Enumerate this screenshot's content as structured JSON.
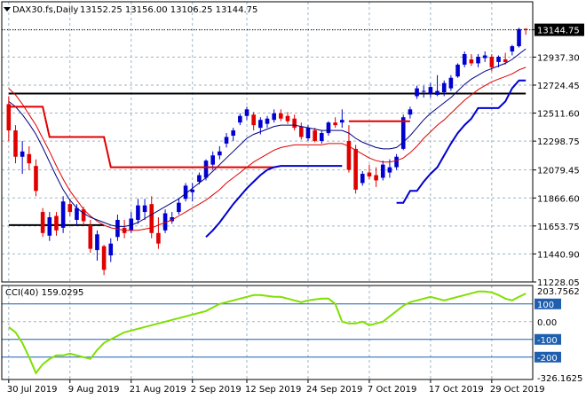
{
  "header": {
    "symbol_timeframe": "DAX30.fs,Daily",
    "ohlc": "13152.25 13156.00 13106.25 13144.75",
    "indicator_label": "CCI(40) 159.0295"
  },
  "colors": {
    "bull_candle": "#0000d0",
    "bear_candle": "#e00000",
    "ma_fast": "#000080",
    "ma_slow": "#e00000",
    "stop_bear": "#e00000",
    "stop_bull": "#0000d0",
    "cci_line": "#7fe000",
    "level_line": "#000000",
    "cci_level": "#1f5faf",
    "grid": "#9fb6c6"
  },
  "price_axis": {
    "ticks": [
      "13144.75",
      "12937.30",
      "12724.45",
      "12511.60",
      "12298.75",
      "12079.45",
      "11866.60",
      "11653.75",
      "11440.90",
      "11228.05"
    ],
    "current": "13144.75"
  },
  "cci_axis": {
    "ticks": [
      "203.7562",
      "100",
      "0.00",
      "-100",
      "-200",
      "-326.1625"
    ],
    "highlighted": [
      "100",
      "-100",
      "-200"
    ]
  },
  "time_axis": {
    "labels": [
      "30 Jul 2019",
      "9 Aug 2019",
      "21 Aug 2019",
      "2 Sep 2019",
      "12 Sep 2019",
      "24 Sep 2019",
      "7 Oct 2019",
      "17 Oct 2019",
      "29 Oct 2019"
    ]
  },
  "chart_data": {
    "type": "candlestick",
    "price_range": [
      11228.05,
      13250
    ],
    "candles": [
      [
        12580,
        12640,
        12300,
        12380
      ],
      [
        12380,
        12420,
        12130,
        12180
      ],
      [
        12180,
        12300,
        12050,
        12220
      ],
      [
        12200,
        12260,
        12080,
        12130
      ],
      [
        12110,
        12160,
        11880,
        11920
      ],
      [
        11760,
        11790,
        11570,
        11600
      ],
      [
        11580,
        11760,
        11540,
        11720
      ],
      [
        11730,
        11760,
        11580,
        11620
      ],
      [
        11640,
        11880,
        11600,
        11840
      ],
      [
        11820,
        11860,
        11730,
        11760
      ],
      [
        11700,
        11820,
        11660,
        11790
      ],
      [
        11780,
        11800,
        11660,
        11690
      ],
      [
        11660,
        11700,
        11450,
        11480
      ],
      [
        11470,
        11620,
        11390,
        11590
      ],
      [
        11500,
        11510,
        11280,
        11320
      ],
      [
        11430,
        11560,
        11380,
        11520
      ],
      [
        11570,
        11740,
        11540,
        11700
      ],
      [
        11640,
        11700,
        11560,
        11600
      ],
      [
        11620,
        11760,
        11600,
        11710
      ],
      [
        11700,
        11860,
        11670,
        11810
      ],
      [
        11760,
        11860,
        11700,
        11810
      ],
      [
        11820,
        11880,
        11560,
        11600
      ],
      [
        11600,
        11720,
        11480,
        11520
      ],
      [
        11620,
        11780,
        11600,
        11750
      ],
      [
        11690,
        11760,
        11670,
        11720
      ],
      [
        11760,
        11860,
        11740,
        11830
      ],
      [
        11860,
        11980,
        11840,
        11960
      ],
      [
        11910,
        11980,
        11840,
        11930
      ],
      [
        11990,
        12060,
        11970,
        12040
      ],
      [
        12020,
        12160,
        12000,
        12150
      ],
      [
        12120,
        12220,
        12080,
        12190
      ],
      [
        12190,
        12260,
        12160,
        12220
      ],
      [
        12280,
        12360,
        12250,
        12330
      ],
      [
        12340,
        12400,
        12300,
        12380
      ],
      [
        12440,
        12510,
        12420,
        12490
      ],
      [
        12490,
        12560,
        12460,
        12540
      ],
      [
        12500,
        12520,
        12380,
        12420
      ],
      [
        12400,
        12480,
        12350,
        12460
      ],
      [
        12430,
        12490,
        12400,
        12470
      ],
      [
        12460,
        12540,
        12440,
        12510
      ],
      [
        12510,
        12540,
        12450,
        12470
      ],
      [
        12490,
        12520,
        12430,
        12450
      ],
      [
        12470,
        12500,
        12380,
        12400
      ],
      [
        12410,
        12440,
        12310,
        12330
      ],
      [
        12320,
        12420,
        12300,
        12400
      ],
      [
        12380,
        12400,
        12290,
        12300
      ],
      [
        12300,
        12380,
        12280,
        12360
      ],
      [
        12360,
        12450,
        12340,
        12440
      ],
      [
        12440,
        12480,
        12400,
        12420
      ],
      [
        12440,
        12540,
        12400,
        12460
      ],
      [
        12300,
        12420,
        12060,
        12080
      ],
      [
        12240,
        12270,
        11900,
        11930
      ],
      [
        11980,
        12070,
        11960,
        12050
      ],
      [
        12060,
        12120,
        12010,
        12030
      ],
      [
        12040,
        12100,
        11950,
        12000
      ],
      [
        12020,
        12150,
        12000,
        12120
      ],
      [
        12060,
        12160,
        12020,
        12100
      ],
      [
        12100,
        12200,
        12080,
        12180
      ],
      [
        12240,
        12500,
        12230,
        12480
      ],
      [
        12500,
        12560,
        12470,
        12540
      ],
      [
        12640,
        12720,
        12620,
        12700
      ],
      [
        12680,
        12720,
        12630,
        12680
      ],
      [
        12660,
        12740,
        12630,
        12710
      ],
      [
        12650,
        12800,
        12640,
        12680
      ],
      [
        12670,
        12760,
        12640,
        12740
      ],
      [
        12700,
        12800,
        12680,
        12780
      ],
      [
        12790,
        12890,
        12780,
        12880
      ],
      [
        12880,
        12980,
        12860,
        12960
      ],
      [
        12920,
        12960,
        12870,
        12890
      ],
      [
        12890,
        12960,
        12860,
        12940
      ],
      [
        12930,
        12980,
        12900,
        12950
      ],
      [
        12940,
        12960,
        12830,
        12860
      ],
      [
        12900,
        12950,
        12860,
        12940
      ],
      [
        12920,
        12970,
        12880,
        12900
      ],
      [
        12980,
        13030,
        12950,
        13020
      ],
      [
        13020,
        13160,
        13010,
        13150
      ],
      [
        13152.25,
        13156,
        13106.25,
        13144.75
      ]
    ],
    "ma_fast": [
      12600,
      12560,
      12500,
      12430,
      12350,
      12250,
      12140,
      12030,
      11930,
      11850,
      11790,
      11750,
      11720,
      11700,
      11680,
      11660,
      11650,
      11650,
      11660,
      11680,
      11710,
      11740,
      11770,
      11800,
      11830,
      11860,
      11900,
      11940,
      11980,
      12020,
      12070,
      12120,
      12170,
      12220,
      12270,
      12320,
      12350,
      12370,
      12390,
      12410,
      12420,
      12420,
      12420,
      12410,
      12400,
      12390,
      12380,
      12380,
      12380,
      12380,
      12360,
      12320,
      12290,
      12270,
      12250,
      12240,
      12240,
      12250,
      12290,
      12340,
      12400,
      12460,
      12510,
      12550,
      12590,
      12630,
      12680,
      12730,
      12770,
      12800,
      12830,
      12850,
      12870,
      12890,
      12920,
      12960,
      13000
    ],
    "ma_slow": [
      12700,
      12650,
      12580,
      12500,
      12420,
      12320,
      12220,
      12110,
      12010,
      11920,
      11850,
      11780,
      11730,
      11690,
      11660,
      11640,
      11630,
      11620,
      11620,
      11620,
      11630,
      11640,
      11660,
      11680,
      11700,
      11730,
      11760,
      11790,
      11820,
      11850,
      11890,
      11930,
      11980,
      12020,
      12060,
      12100,
      12140,
      12170,
      12200,
      12230,
      12250,
      12260,
      12270,
      12270,
      12270,
      12270,
      12270,
      12280,
      12280,
      12280,
      12260,
      12230,
      12200,
      12170,
      12150,
      12140,
      12140,
      12150,
      12170,
      12210,
      12260,
      12320,
      12370,
      12420,
      12460,
      12510,
      12560,
      12610,
      12650,
      12690,
      12720,
      12750,
      12770,
      12790,
      12810,
      12840,
      12860
    ],
    "stop_bear_segments": [
      {
        "x": [
          0,
          5,
          6,
          14,
          15,
          39
        ],
        "y": [
          12560,
          12560,
          12330,
          12330,
          12100,
          12100
        ]
      },
      {
        "x": [
          50,
          59
        ],
        "y": [
          12450,
          12450
        ]
      }
    ],
    "stop_bull_segments": [
      {
        "x": [
          29,
          30,
          31,
          32,
          33,
          34,
          35,
          36,
          37,
          38,
          39,
          40,
          41,
          42,
          43,
          44,
          45,
          46,
          47,
          48,
          49
        ],
        "y": [
          11570,
          11620,
          11680,
          11750,
          11820,
          11880,
          11940,
          11990,
          12040,
          12080,
          12100,
          12110,
          12110,
          12110,
          12110,
          12110,
          12110,
          12110,
          12110,
          12110,
          12110
        ]
      },
      {
        "x": [
          57,
          58,
          59,
          60,
          61,
          62,
          63,
          64,
          65,
          66,
          67,
          68,
          69,
          70,
          71,
          72,
          73,
          74,
          75,
          76
        ],
        "y": [
          11830,
          11830,
          11920,
          11920,
          11990,
          12050,
          12100,
          12190,
          12280,
          12360,
          12420,
          12470,
          12550,
          12550,
          12550,
          12550,
          12600,
          12700,
          12760,
          12760
        ]
      }
    ],
    "levels": [
      {
        "y": 12660,
        "x": [
          0,
          76
        ]
      },
      {
        "y": 11660,
        "x": [
          0,
          14
        ]
      }
    ],
    "cci": {
      "range": [
        -326.1625,
        203.7562
      ],
      "levels": [
        100,
        0,
        -100,
        -200
      ],
      "values": [
        -30,
        -60,
        -120,
        -200,
        -290,
        -240,
        -210,
        -190,
        -190,
        -180,
        -190,
        -200,
        -210,
        -160,
        -120,
        -100,
        -80,
        -60,
        -50,
        -40,
        -30,
        -20,
        -10,
        0,
        10,
        20,
        30,
        40,
        50,
        60,
        80,
        100,
        110,
        120,
        130,
        140,
        150,
        150,
        145,
        140,
        140,
        130,
        120,
        110,
        120,
        125,
        130,
        130,
        100,
        0,
        -10,
        -10,
        0,
        -20,
        -10,
        0,
        30,
        60,
        90,
        110,
        120,
        130,
        140,
        130,
        120,
        130,
        140,
        150,
        160,
        170,
        170,
        165,
        150,
        130,
        120,
        140,
        159
      ]
    }
  }
}
